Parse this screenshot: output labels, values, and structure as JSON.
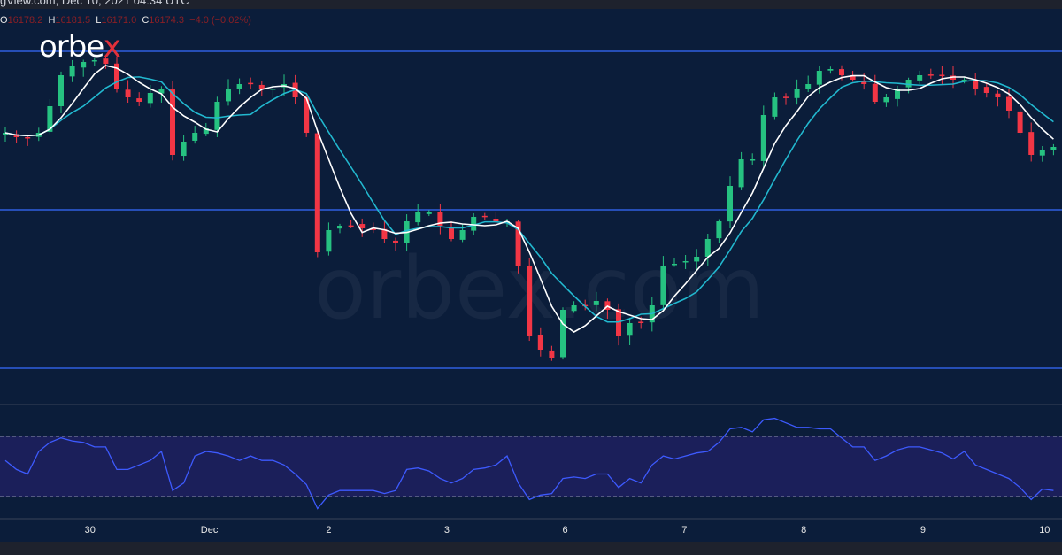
{
  "header": {
    "source_text": "gView.com, Dec 10, 2021 04:34 UTC"
  },
  "ohlc": {
    "o_label": "O",
    "o": "16178.2",
    "h_label": "H",
    "h": "16181.5",
    "l_label": "L",
    "l": "16171.0",
    "c_label": "C",
    "c": "16174.3",
    "change": "−4.0 (−0.02%)"
  },
  "logo": {
    "text_main": "orbe",
    "text_accent": "x"
  },
  "watermark": "orbex.com",
  "colors": {
    "up": "#26c281",
    "down": "#f23645",
    "ma_fast": "#ffffff",
    "ma_slow": "#22b8cf",
    "level": "#2f5fe0",
    "rsi": "#3d5afe",
    "rsi_band": "#1b1f5a"
  },
  "chart_data": {
    "type": "candlestick",
    "closes": [
      16206,
      16196,
      16196,
      16206,
      16266,
      16336,
      16356,
      16366,
      16370,
      16362,
      16306,
      16286,
      16276,
      16296,
      16306,
      16156,
      16186,
      16206,
      16216,
      16276,
      16306,
      16316,
      16316,
      16306,
      16306,
      16316,
      16286,
      16206,
      15936,
      15986,
      15996,
      15996,
      15990,
      15986,
      15966,
      15956,
      16006,
      16026,
      16026,
      15996,
      15966,
      15986,
      16016,
      16016,
      16006,
      16006,
      15906,
      15746,
      15716,
      15696,
      15806,
      15816,
      15816,
      15826,
      15806,
      15746,
      15776,
      15776,
      15816,
      15906,
      15910,
      15916,
      15926,
      15966,
      16006,
      16086,
      16146,
      16146,
      16246,
      16286,
      16286,
      16306,
      16316,
      16346,
      16350,
      16336,
      16326,
      16316,
      16276,
      16286,
      16306,
      16326,
      16336,
      16336,
      16336,
      16326,
      16326,
      16306,
      16296,
      16286,
      16256,
      16206,
      16156,
      16166,
      16174
    ],
    "price_range": [
      15282,
      16506
    ],
    "levels": [
      16390,
      16032,
      15674
    ],
    "ma_periods": [
      5,
      8
    ],
    "rsi": {
      "values": [
        54,
        48,
        45,
        60,
        66,
        69,
        67,
        66,
        63,
        63,
        48,
        48,
        51,
        54,
        60,
        34,
        39,
        57,
        60,
        59,
        57,
        54,
        57,
        54,
        54,
        51,
        45,
        38,
        22,
        31,
        34,
        34,
        34,
        34,
        32,
        34,
        48,
        49,
        47,
        42,
        39,
        42,
        48,
        49,
        51,
        57,
        39,
        28,
        31,
        32,
        42,
        43,
        42,
        45,
        45,
        36,
        42,
        39,
        51,
        57,
        55,
        57,
        59,
        60,
        66,
        75,
        76,
        73,
        81,
        82,
        79,
        76,
        76,
        75,
        75,
        69,
        63,
        63,
        54,
        57,
        61,
        63,
        63,
        61,
        59,
        55,
        60,
        51,
        48,
        45,
        42,
        36,
        28,
        35,
        34
      ],
      "upper": 70,
      "lower": 30
    },
    "x_labels": [
      {
        "label": "30",
        "index": 7.6
      },
      {
        "label": "Dec",
        "index": 18.3
      },
      {
        "label": "2",
        "index": 29
      },
      {
        "label": "3",
        "index": 39.6
      },
      {
        "label": "6",
        "index": 50.2
      },
      {
        "label": "7",
        "index": 60.9
      },
      {
        "label": "8",
        "index": 71.6
      },
      {
        "label": "9",
        "index": 82.3
      },
      {
        "label": "10",
        "index": 93.2
      }
    ]
  }
}
